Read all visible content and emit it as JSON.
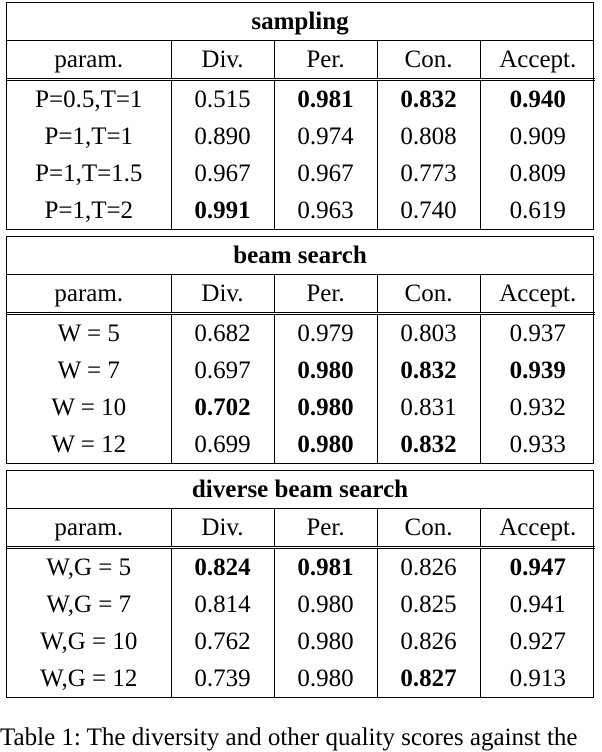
{
  "header": [
    "param.",
    "Div.",
    "Per.",
    "Con.",
    "Accept."
  ],
  "sections": [
    {
      "title": "sampling",
      "rows": [
        [
          "P=0.5,T=1",
          "0.515",
          "0.981",
          "0.832",
          "0.940"
        ],
        [
          "P=1,T=1",
          "0.890",
          "0.974",
          "0.808",
          "0.909"
        ],
        [
          "P=1,T=1.5",
          "0.967",
          "0.967",
          "0.773",
          "0.809"
        ],
        [
          "P=1,T=2",
          "0.991",
          "0.963",
          "0.740",
          "0.619"
        ]
      ],
      "bold": [
        [
          0,
          2
        ],
        [
          0,
          3
        ],
        [
          0,
          4
        ],
        [
          3,
          1
        ]
      ]
    },
    {
      "title": "beam search",
      "rows": [
        [
          "W = 5",
          "0.682",
          "0.979",
          "0.803",
          "0.937"
        ],
        [
          "W = 7",
          "0.697",
          "0.980",
          "0.832",
          "0.939"
        ],
        [
          "W = 10",
          "0.702",
          "0.980",
          "0.831",
          "0.932"
        ],
        [
          "W = 12",
          "0.699",
          "0.980",
          "0.832",
          "0.933"
        ]
      ],
      "bold": [
        [
          1,
          2
        ],
        [
          1,
          3
        ],
        [
          1,
          4
        ],
        [
          2,
          1
        ],
        [
          2,
          2
        ],
        [
          3,
          2
        ],
        [
          3,
          3
        ]
      ]
    },
    {
      "title": "diverse beam search",
      "rows": [
        [
          "W,G = 5",
          "0.824",
          "0.981",
          "0.826",
          "0.947"
        ],
        [
          "W,G = 7",
          "0.814",
          "0.980",
          "0.825",
          "0.941"
        ],
        [
          "W,G = 10",
          "0.762",
          "0.980",
          "0.826",
          "0.927"
        ],
        [
          "W,G = 12",
          "0.739",
          "0.980",
          "0.827",
          "0.913"
        ]
      ],
      "bold": [
        [
          0,
          1
        ],
        [
          0,
          2
        ],
        [
          0,
          4
        ],
        [
          3,
          3
        ]
      ]
    }
  ],
  "caption": "Table 1: The diversity and other quality scores against the"
}
